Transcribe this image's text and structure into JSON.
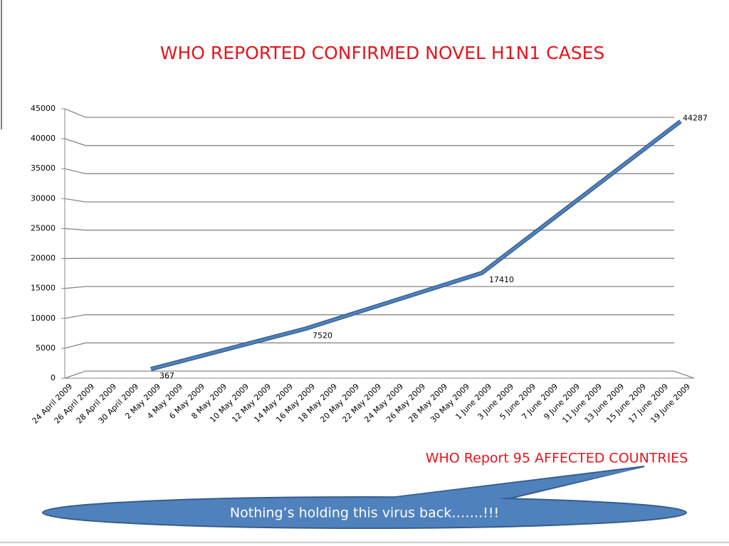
{
  "chart_data": {
    "type": "line",
    "title": "WHO REPORTED CONFIRMED NOVEL H1N1 CASES",
    "categories": [
      "24 April 2009",
      "26 April 2009",
      "28 April 2009",
      "30 April 2009",
      "2 May 2009",
      "4 May 2009",
      "6 May 2009",
      "8 May 2009",
      "10 May 2009",
      "12 May 2009",
      "14 May 2009",
      "16 May 2009",
      "18 May 2009",
      "20 May 2009",
      "22 May 2009",
      "24 May 2009",
      "26 May 2009",
      "28 May 2009",
      "30 May 2009",
      "1 June 2009",
      "3 June 2009",
      "5 June 2009",
      "7 June 2009",
      "9 June 2009",
      "11 June 2009",
      "13 June 2009",
      "15 June 2009",
      "17 June 2009",
      "19 June 2009"
    ],
    "x": [
      "2 May 2009",
      "16 May 2009",
      "1 June 2009",
      "19 June 2009"
    ],
    "values": [
      367,
      7520,
      17410,
      44287
    ],
    "color": "#4f81bd",
    "ylim": [
      0,
      45000
    ],
    "yticks": [
      0,
      5000,
      10000,
      15000,
      20000,
      25000,
      30000,
      35000,
      40000,
      45000
    ],
    "grid": true,
    "annotations": [
      "WHO Report 95 AFFECTED COUNTRIES",
      "Nothing’s holding this virus back…….!!!"
    ]
  }
}
